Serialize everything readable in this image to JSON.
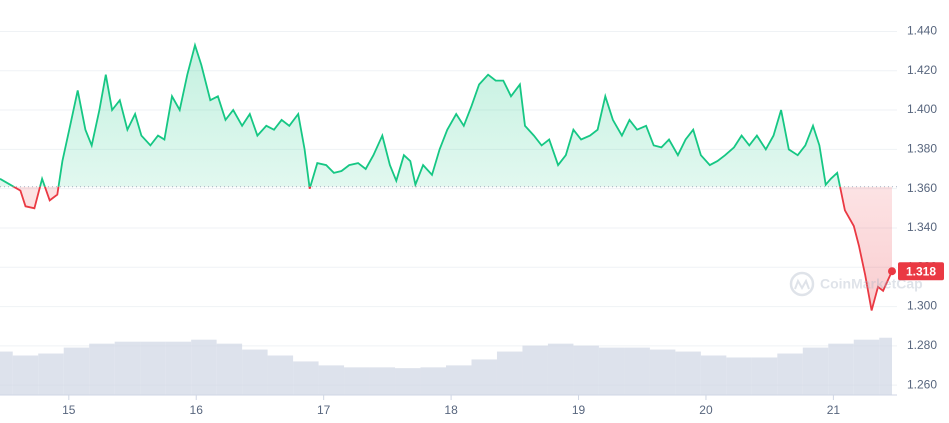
{
  "chart_data": {
    "type": "line",
    "x": [
      14.46,
      14.54,
      14.62,
      14.66,
      14.73,
      14.79,
      14.85,
      14.91,
      14.95,
      15.01,
      15.07,
      15.13,
      15.18,
      15.24,
      15.29,
      15.34,
      15.4,
      15.46,
      15.52,
      15.57,
      15.64,
      15.7,
      15.75,
      15.81,
      15.87,
      15.93,
      15.99,
      16.04,
      16.11,
      16.17,
      16.23,
      16.29,
      16.36,
      16.42,
      16.48,
      16.55,
      16.61,
      16.67,
      16.73,
      16.8,
      16.85,
      16.89,
      16.95,
      17.02,
      17.08,
      17.14,
      17.2,
      17.27,
      17.33,
      17.39,
      17.46,
      17.52,
      17.57,
      17.63,
      17.68,
      17.72,
      17.78,
      17.85,
      17.91,
      17.97,
      18.04,
      18.1,
      18.16,
      18.22,
      18.29,
      18.35,
      18.41,
      18.47,
      18.54,
      18.58,
      18.65,
      18.71,
      18.77,
      18.84,
      18.9,
      18.96,
      19.02,
      19.09,
      19.15,
      19.21,
      19.27,
      19.34,
      19.4,
      19.46,
      19.53,
      19.59,
      19.65,
      19.71,
      19.78,
      19.84,
      19.9,
      19.96,
      20.03,
      20.09,
      20.15,
      20.22,
      20.28,
      20.34,
      20.4,
      20.47,
      20.53,
      20.59,
      20.65,
      20.72,
      20.78,
      20.84,
      20.89,
      20.94,
      20.98,
      21.03,
      21.09,
      21.16,
      21.2,
      21.25,
      21.3,
      21.35,
      21.39,
      21.46
    ],
    "series": [
      {
        "color": "#16c784",
        "below_color": "#ea3943",
        "values": [
          1.365,
          1.362,
          1.359,
          1.351,
          1.35,
          1.365,
          1.354,
          1.357,
          1.374,
          1.392,
          1.41,
          1.39,
          1.382,
          1.4,
          1.418,
          1.4,
          1.405,
          1.39,
          1.398,
          1.387,
          1.382,
          1.387,
          1.385,
          1.407,
          1.4,
          1.418,
          1.433,
          1.423,
          1.405,
          1.407,
          1.395,
          1.4,
          1.392,
          1.398,
          1.387,
          1.392,
          1.39,
          1.395,
          1.392,
          1.398,
          1.38,
          1.36,
          1.373,
          1.372,
          1.368,
          1.369,
          1.372,
          1.373,
          1.37,
          1.377,
          1.387,
          1.372,
          1.364,
          1.377,
          1.374,
          1.362,
          1.372,
          1.367,
          1.38,
          1.39,
          1.398,
          1.392,
          1.402,
          1.413,
          1.418,
          1.415,
          1.415,
          1.407,
          1.413,
          1.392,
          1.387,
          1.382,
          1.385,
          1.372,
          1.377,
          1.39,
          1.385,
          1.387,
          1.39,
          1.407,
          1.395,
          1.387,
          1.395,
          1.39,
          1.392,
          1.382,
          1.381,
          1.385,
          1.377,
          1.385,
          1.39,
          1.377,
          1.372,
          1.374,
          1.377,
          1.381,
          1.387,
          1.382,
          1.387,
          1.38,
          1.387,
          1.4,
          1.38,
          1.377,
          1.382,
          1.392,
          1.382,
          1.362,
          1.365,
          1.368,
          1.349,
          1.341,
          1.331,
          1.316,
          1.298,
          1.31,
          1.308,
          1.318
        ]
      }
    ],
    "baseline": 1.361,
    "current_price": 1.318,
    "volume": {
      "color": "#cfd6e4",
      "axis": "y2",
      "x": [
        14.46,
        14.66,
        14.86,
        15.06,
        15.26,
        15.46,
        15.66,
        15.86,
        16.06,
        16.26,
        16.46,
        16.66,
        16.86,
        17.06,
        17.26,
        17.46,
        17.66,
        17.86,
        18.06,
        18.26,
        18.46,
        18.66,
        18.86,
        19.06,
        19.26,
        19.46,
        19.66,
        19.86,
        20.06,
        20.26,
        20.46,
        20.66,
        20.86,
        21.06,
        21.26,
        21.46
      ],
      "values": [
        11,
        10,
        10.5,
        12,
        13,
        13.5,
        13.5,
        13.5,
        14,
        13,
        11.5,
        10,
        8.5,
        7.5,
        7,
        7,
        6.8,
        7,
        7.5,
        9,
        11,
        12.5,
        13,
        12.5,
        12,
        12,
        11.5,
        11,
        10,
        9.5,
        9.5,
        10.5,
        12,
        13,
        14,
        14.5
      ]
    },
    "xlim": [
      14.46,
      21.46
    ],
    "xticks": [
      15,
      16,
      17,
      18,
      19,
      20,
      21
    ],
    "ylim": [
      1.255,
      1.456
    ],
    "yticks": [
      {
        "value": 1.26,
        "label": "1.260"
      },
      {
        "value": 1.28,
        "label": "1.280"
      },
      {
        "value": 1.3,
        "label": "1.300"
      },
      {
        "value": 1.32,
        "label": "1.320"
      },
      {
        "value": 1.34,
        "label": "1.340"
      },
      {
        "value": 1.36,
        "label": "1.360"
      },
      {
        "value": 1.38,
        "label": "1.380"
      },
      {
        "value": 1.4,
        "label": "1.400"
      },
      {
        "value": 1.42,
        "label": "1.420"
      },
      {
        "value": 1.44,
        "label": "1.440"
      }
    ],
    "y2lim": [
      0,
      100
    ],
    "grid": true,
    "watermark": "CoinMarketCap"
  }
}
